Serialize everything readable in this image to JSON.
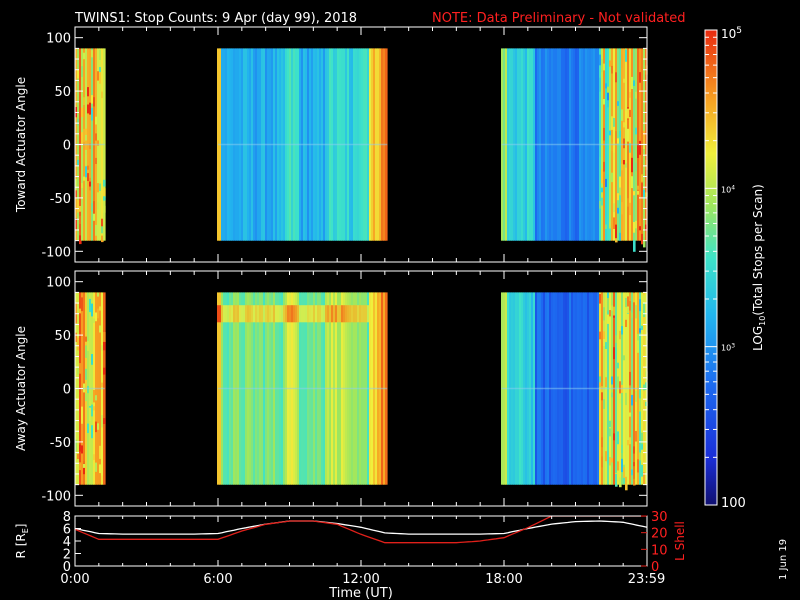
{
  "header": {
    "title": "TWINS1: Stop Counts:  9 Apr (day  99), 2018",
    "note": "NOTE: Data Preliminary - Not validated"
  },
  "footer": {
    "date_stamp": "1 Jun 19"
  },
  "colors": {
    "note_red": "#ff2020",
    "lshell_red": "#e0201a",
    "r_line_white": "#ffffff",
    "background": "#000000"
  },
  "chart_data": [
    {
      "type": "heatmap",
      "id": "toward",
      "ylabel": "Toward Actuator Angle",
      "ylim": [
        -110,
        110
      ],
      "yticks": [
        -100,
        -50,
        0,
        50,
        100
      ],
      "x_unit": "hours UT",
      "xlim": [
        0,
        24
      ],
      "data_y_range": [
        -90,
        90
      ],
      "coverage_windows_hours": [
        [
          0.0,
          1.25
        ],
        [
          6.0,
          13.1
        ],
        [
          17.9,
          24.0
        ]
      ],
      "value_description": "log10 stop counts per scan; roughly 3.5-5 during 0-1.25h, 2.5-4 during 6-13h with higher values near 12.5-13h, 2.5-3.5 during 18-24h with high variable values after 22h"
    },
    {
      "type": "heatmap",
      "id": "away",
      "ylabel": "Away Actuator Angle",
      "ylim": [
        -110,
        110
      ],
      "yticks": [
        -100,
        -50,
        0,
        50,
        100
      ],
      "x_unit": "hours UT",
      "xlim": [
        0,
        24
      ],
      "data_y_range": [
        -90,
        90
      ],
      "coverage_windows_hours": [
        [
          0.0,
          1.25
        ],
        [
          6.0,
          13.1
        ],
        [
          17.9,
          24.0
        ]
      ],
      "value_description": "log10 stop counts per scan; higher than toward panel during 6-13h, with a bright band near +70 deg"
    },
    {
      "type": "line",
      "id": "orbit",
      "ylabel_left": "R [R",
      "ylabel_left_sub": "E",
      "ylabel_left_end": "]",
      "ylabel_right": "L Shell",
      "xlabel": "Time (UT)",
      "x_tick_labels": [
        "0:00",
        "6:00",
        "12:00",
        "18:00",
        "23:59"
      ],
      "x_tick_values": [
        0,
        6,
        12,
        18,
        23.98
      ],
      "ylim_left": [
        0,
        8
      ],
      "yticks_left": [
        0,
        2,
        4,
        6,
        8
      ],
      "ylim_right": [
        0,
        30
      ],
      "yticks_right": [
        0,
        10,
        20,
        30
      ],
      "x": [
        0,
        1,
        2,
        3,
        4,
        5,
        6,
        7,
        8,
        9,
        10,
        11,
        12,
        13,
        14,
        15,
        16,
        17,
        18,
        19,
        20,
        21,
        22,
        23,
        24
      ],
      "series": [
        {
          "axis": "left",
          "values": [
            6.0,
            5.2,
            5.1,
            5.1,
            5.1,
            5.1,
            5.2,
            6.0,
            6.7,
            7.2,
            7.2,
            6.8,
            6.2,
            5.3,
            5.1,
            5.1,
            5.1,
            5.1,
            5.2,
            6.0,
            6.7,
            7.1,
            7.2,
            7.0,
            6.2
          ]
        },
        {
          "axis": "right",
          "values": [
            22,
            16,
            16,
            16,
            16,
            16,
            16,
            21,
            25,
            27,
            27,
            25,
            19,
            14,
            14,
            14,
            14,
            15,
            17,
            23,
            30,
            30,
            30,
            30,
            30
          ]
        }
      ]
    }
  ],
  "colorbar": {
    "tick_labels": [
      "10",
      "10",
      "10"
    ],
    "tick_exponents": [
      "5",
      "4",
      "3"
    ],
    "bottom_label": "100",
    "label_main": "LOG",
    "label_sub": "10",
    "label_rest": "(Total Stops per Scan)",
    "range_log10": [
      2,
      5
    ]
  }
}
